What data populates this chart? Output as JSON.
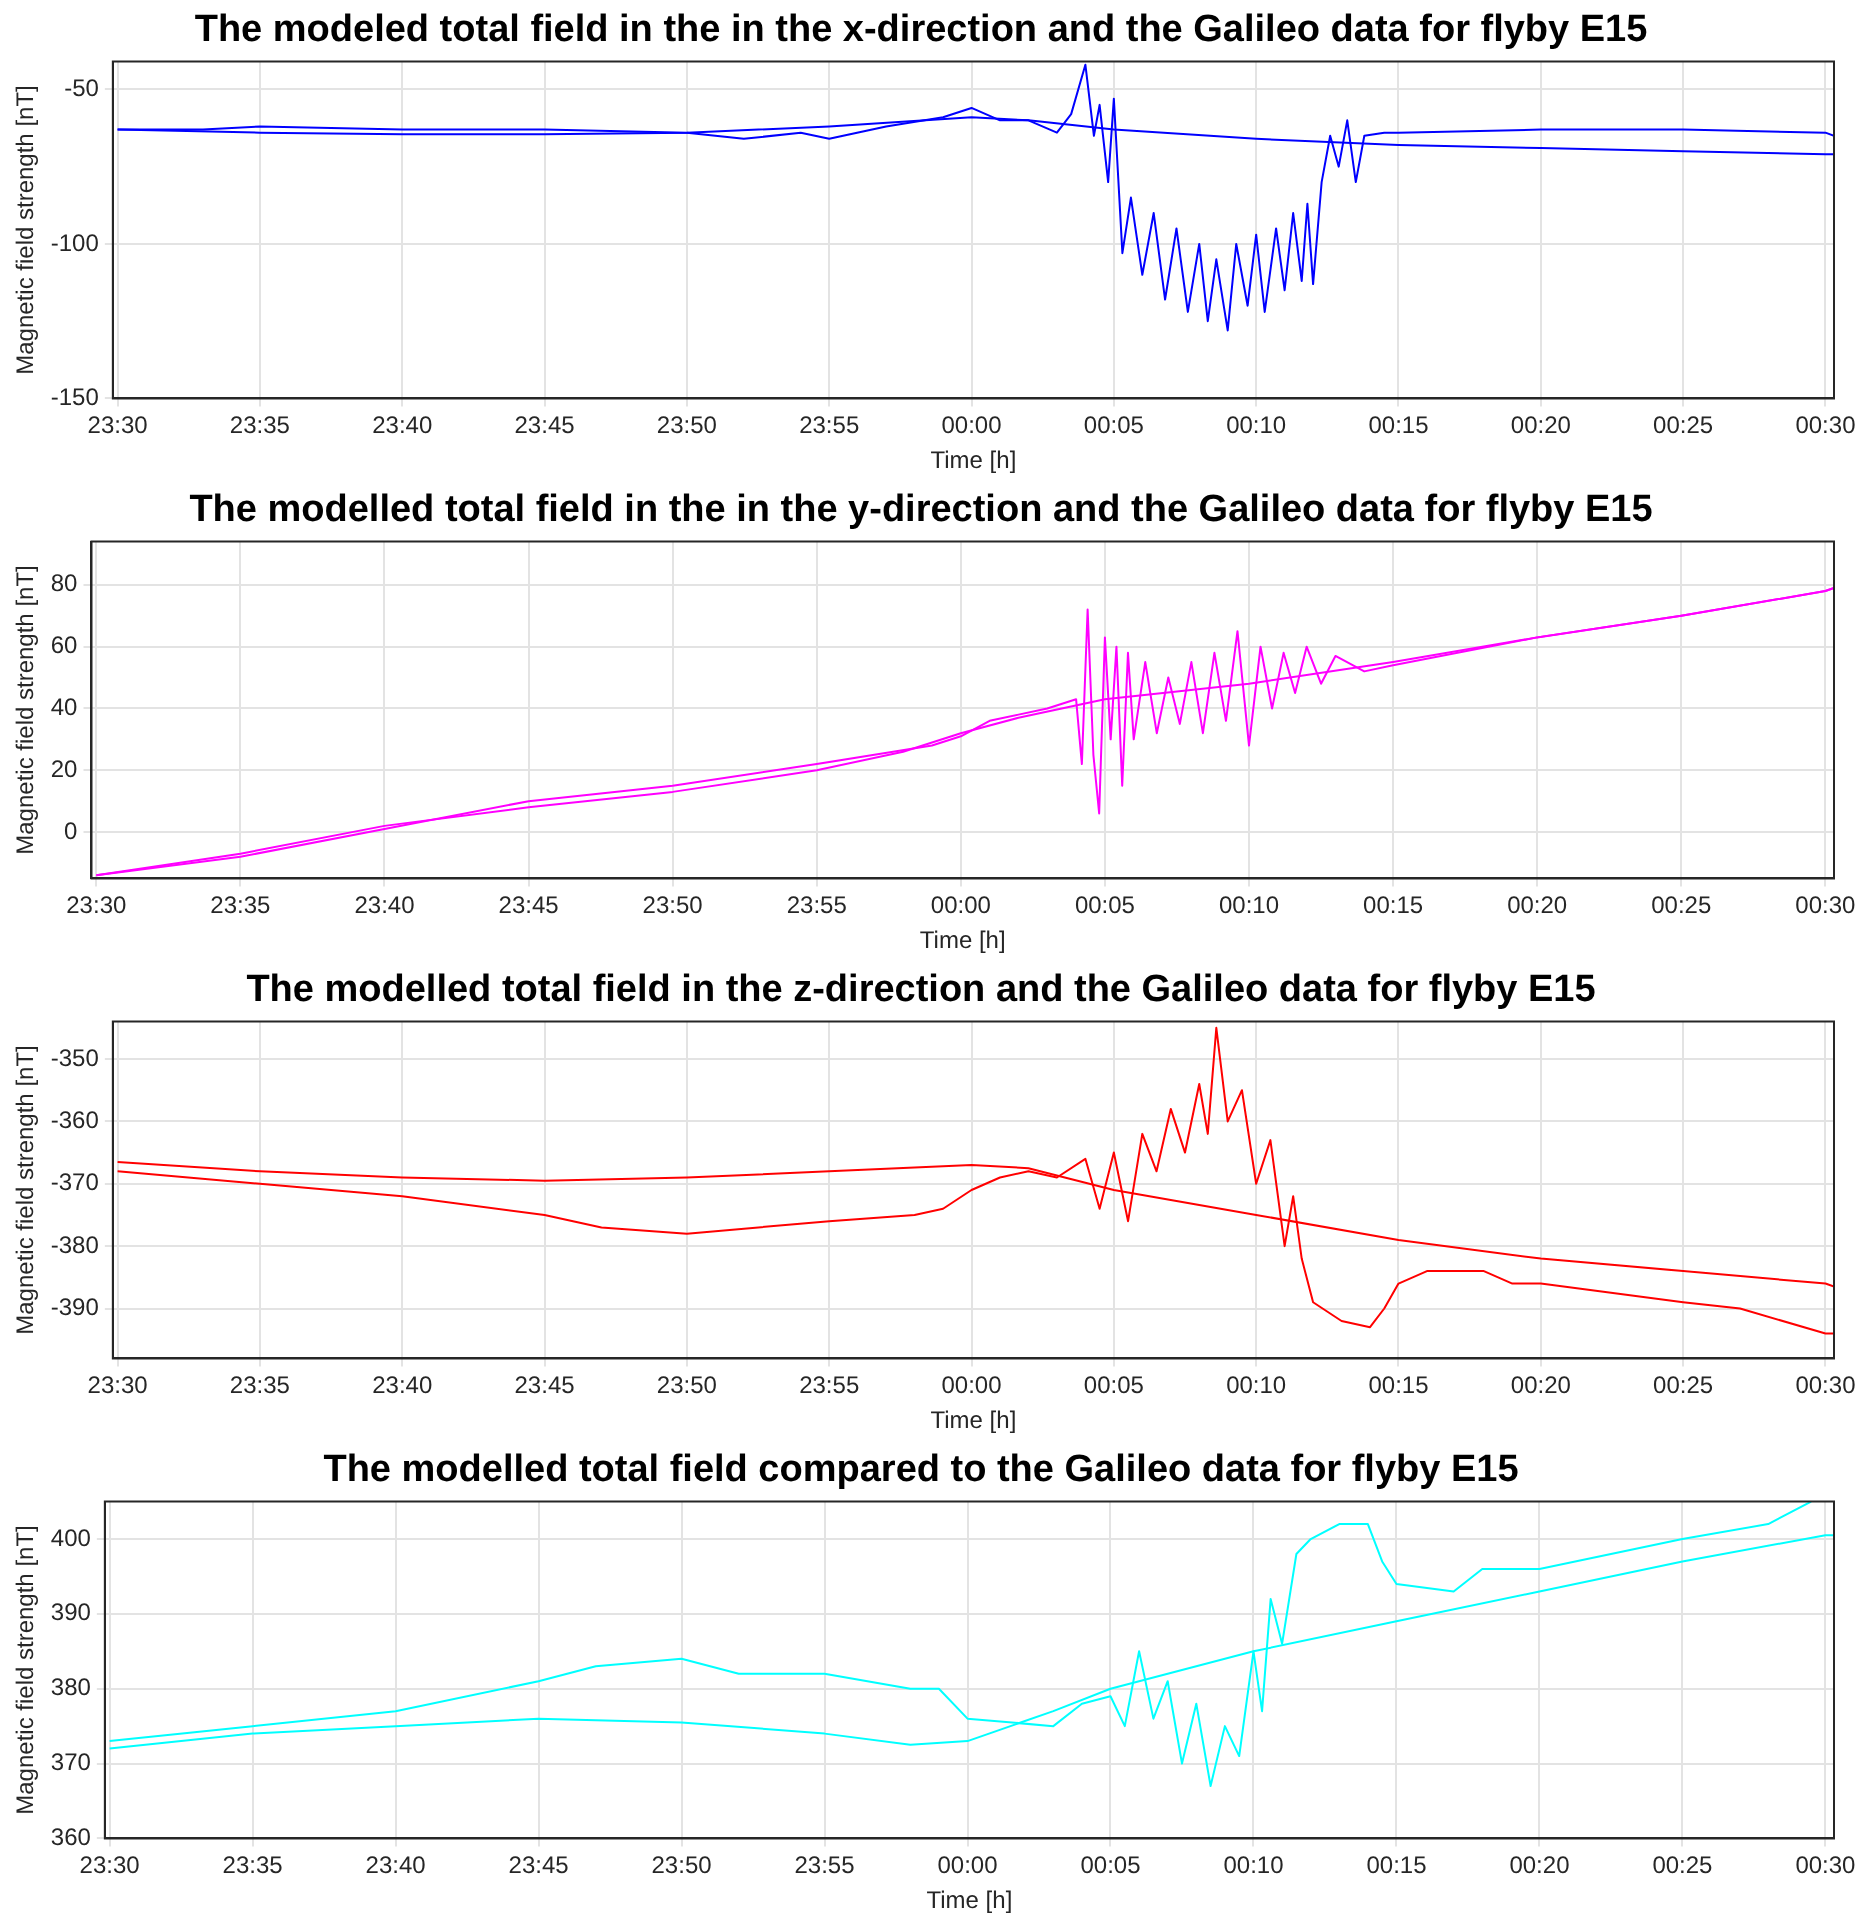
{
  "chart_data": [
    {
      "type": "line",
      "title": "The modeled total field in the in the x-direction and the Galileo data for flyby E15",
      "xlabel": "Time [h]",
      "ylabel": "Magnetic field strength [nT]",
      "xlim": [
        "--01-01T23:29:50",
        "--01-02T00:30:18"
      ],
      "ylim": [
        -150,
        -41
      ],
      "yticks": [
        -150,
        -100,
        -50
      ],
      "xticks": [
        {
          "value": "--01-01T23:30",
          "label": "23:30"
        },
        {
          "value": "--01-01T23:35",
          "label": "23:35"
        },
        {
          "value": "--01-01T23:40",
          "label": "23:40"
        },
        {
          "value": "--01-01T23:45",
          "label": "23:45"
        },
        {
          "value": "--01-01T23:50",
          "label": "23:50"
        },
        {
          "value": "--01-01T23:55",
          "label": "23:55"
        },
        {
          "value": "--01-02T00:00",
          "label": "00:00"
        },
        {
          "value": "--01-02T00:05",
          "label": "00:05"
        },
        {
          "value": "--01-02T00:10",
          "label": "00:10"
        },
        {
          "value": "--01-02T00:15",
          "label": "00:15"
        },
        {
          "value": "--01-02T00:20",
          "label": "00:20"
        },
        {
          "value": "--01-02T00:25",
          "label": "00:25"
        },
        {
          "value": "--01-02T00:30",
          "label": "00:30"
        }
      ],
      "grid": true,
      "series": [
        {
          "color": "#0000ff",
          "x": [
            "--01-01T23:30",
            "--01-01T23:33",
            "--01-01T23:35",
            "--01-01T23:40",
            "--01-01T23:45",
            "--01-01T23:50",
            "--01-01T23:52",
            "--01-01T23:54",
            "--01-01T23:55",
            "--01-01T23:57",
            "--01-01T23:59",
            "--01-02T00:00",
            "--01-02T00:01",
            "--01-02T00:02",
            "--01-02T00:03",
            "--01-02T00:03:30",
            "--01-02T00:04",
            "--01-02T00:04:18",
            "--01-02T00:04:30",
            "--01-02T00:04:48",
            "--01-02T00:05",
            "--01-02T00:05:18",
            "--01-02T00:05:36",
            "--01-02T00:06",
            "--01-02T00:06:24",
            "--01-02T00:06:48",
            "--01-02T00:07:12",
            "--01-02T00:07:36",
            "--01-02T00:08",
            "--01-02T00:08:18",
            "--01-02T00:08:36",
            "--01-02T00:09",
            "--01-02T00:09:18",
            "--01-02T00:09:42",
            "--01-02T00:10",
            "--01-02T00:10:18",
            "--01-02T00:10:42",
            "--01-02T00:11",
            "--01-02T00:11:18",
            "--01-02T00:11:36",
            "--01-02T00:11:48",
            "--01-02T00:12",
            "--01-02T00:12:18",
            "--01-02T00:12:36",
            "--01-02T00:12:54",
            "--01-02T00:13:12",
            "--01-02T00:13:30",
            "--01-02T00:13:48",
            "--01-02T00:14:30",
            "--01-02T00:15",
            "--01-02T00:20",
            "--01-02T00:25",
            "--01-02T00:30",
            "--01-02T00:30:18"
          ],
          "values": [
            -63,
            -63,
            -62,
            -63,
            -63,
            -64,
            -66,
            -64,
            -66,
            -62,
            -59,
            -56,
            -60,
            -60,
            -64,
            -58,
            -42,
            -65,
            -55,
            -80,
            -53,
            -103,
            -85,
            -110,
            -90,
            -118,
            -95,
            -122,
            -100,
            -125,
            -105,
            -128,
            -100,
            -120,
            -97,
            -122,
            -95,
            -115,
            -90,
            -112,
            -87,
            -113,
            -80,
            -65,
            -75,
            -60,
            -80,
            -65,
            -64,
            -64,
            -63,
            -63,
            -64,
            -65
          ]
        },
        {
          "color": "#0000ff",
          "x": [
            "--01-01T23:30",
            "--01-01T23:35",
            "--01-01T23:40",
            "--01-01T23:45",
            "--01-01T23:50",
            "--01-01T23:55",
            "--01-02T00:00",
            "--01-02T00:02",
            "--01-02T00:05",
            "--01-02T00:10",
            "--01-02T00:15",
            "--01-02T00:20",
            "--01-02T00:25",
            "--01-02T00:30",
            "--01-02T00:30:18"
          ],
          "values": [
            -63,
            -64,
            -64.5,
            -64.5,
            -64,
            -62,
            -59,
            -60,
            -63,
            -66,
            -68,
            -69,
            -70,
            -71,
            -71
          ]
        }
      ]
    },
    {
      "type": "line",
      "title": "The modelled total field in the in the y-direction and the Galileo data for flyby E15",
      "xlabel": "Time [h]",
      "ylabel": "Magnetic field strength [nT]",
      "xlim": [
        "--01-01T23:29:50",
        "--01-02T00:30:18"
      ],
      "ylim": [
        -15,
        94
      ],
      "yticks": [
        0,
        20,
        40,
        60,
        80
      ],
      "xticks": [
        {
          "value": "--01-01T23:30",
          "label": "23:30"
        },
        {
          "value": "--01-01T23:35",
          "label": "23:35"
        },
        {
          "value": "--01-01T23:40",
          "label": "23:40"
        },
        {
          "value": "--01-01T23:45",
          "label": "23:45"
        },
        {
          "value": "--01-01T23:50",
          "label": "23:50"
        },
        {
          "value": "--01-01T23:55",
          "label": "23:55"
        },
        {
          "value": "--01-02T00:00",
          "label": "00:00"
        },
        {
          "value": "--01-02T00:05",
          "label": "00:05"
        },
        {
          "value": "--01-02T00:10",
          "label": "00:10"
        },
        {
          "value": "--01-02T00:15",
          "label": "00:15"
        },
        {
          "value": "--01-02T00:20",
          "label": "00:20"
        },
        {
          "value": "--01-02T00:25",
          "label": "00:25"
        },
        {
          "value": "--01-02T00:30",
          "label": "00:30"
        }
      ],
      "grid": true,
      "series": [
        {
          "color": "#ff00ff",
          "x": [
            "--01-01T23:30",
            "--01-01T23:35",
            "--01-01T23:40",
            "--01-01T23:45",
            "--01-01T23:50",
            "--01-01T23:55",
            "--01-01T23:57",
            "--01-01T23:59",
            "--01-02T00:00",
            "--01-02T00:01",
            "--01-02T00:02",
            "--01-02T00:03",
            "--01-02T00:04",
            "--01-02T00:04:12",
            "--01-02T00:04:24",
            "--01-02T00:04:36",
            "--01-02T00:04:48",
            "--01-02T00:05",
            "--01-02T00:05:12",
            "--01-02T00:05:24",
            "--01-02T00:05:36",
            "--01-02T00:05:48",
            "--01-02T00:06",
            "--01-02T00:06:24",
            "--01-02T00:06:48",
            "--01-02T00:07:12",
            "--01-02T00:07:36",
            "--01-02T00:08",
            "--01-02T00:08:24",
            "--01-02T00:08:48",
            "--01-02T00:09:12",
            "--01-02T00:09:36",
            "--01-02T00:10",
            "--01-02T00:10:24",
            "--01-02T00:10:48",
            "--01-02T00:11:12",
            "--01-02T00:11:36",
            "--01-02T00:12",
            "--01-02T00:12:30",
            "--01-02T00:13",
            "--01-02T00:14",
            "--01-02T00:15",
            "--01-02T00:20",
            "--01-02T00:25",
            "--01-02T00:30",
            "--01-02T00:30:18"
          ],
          "values": [
            -14,
            -8,
            1,
            10,
            15,
            22,
            25,
            28,
            31,
            36,
            38,
            40,
            43,
            22,
            72,
            25,
            6,
            63,
            30,
            60,
            15,
            58,
            30,
            55,
            32,
            50,
            35,
            55,
            32,
            58,
            36,
            65,
            28,
            60,
            40,
            58,
            45,
            60,
            48,
            57,
            52,
            54,
            63,
            70,
            78,
            79
          ]
        },
        {
          "color": "#ff00ff",
          "x": [
            "--01-01T23:30",
            "--01-01T23:35",
            "--01-01T23:40",
            "--01-01T23:45",
            "--01-01T23:50",
            "--01-01T23:55",
            "--01-01T23:58",
            "--01-02T00:00",
            "--01-02T00:02",
            "--01-02T00:05",
            "--01-02T00:10",
            "--01-02T00:15",
            "--01-02T00:20",
            "--01-02T00:25",
            "--01-02T00:30",
            "--01-02T00:30:18"
          ],
          "values": [
            -14,
            -7,
            2,
            8,
            13,
            20,
            26,
            32,
            37,
            43,
            48,
            55,
            63,
            70,
            78,
            79
          ]
        }
      ]
    },
    {
      "type": "line",
      "title": "The modelled total field in the z-direction and the Galileo data for flyby E15",
      "xlabel": "Time [h]",
      "ylabel": "Magnetic field strength [nT]",
      "xlim": [
        "--01-01T23:29:50",
        "--01-02T00:30:18"
      ],
      "ylim": [
        -398,
        -344
      ],
      "yticks": [
        -390,
        -380,
        -370,
        -360,
        -350
      ],
      "xticks": [
        {
          "value": "--01-01T23:30",
          "label": "23:30"
        },
        {
          "value": "--01-01T23:35",
          "label": "23:35"
        },
        {
          "value": "--01-01T23:40",
          "label": "23:40"
        },
        {
          "value": "--01-01T23:45",
          "label": "23:45"
        },
        {
          "value": "--01-01T23:50",
          "label": "23:50"
        },
        {
          "value": "--01-01T23:55",
          "label": "23:55"
        },
        {
          "value": "--01-02T00:00",
          "label": "00:00"
        },
        {
          "value": "--01-02T00:05",
          "label": "00:05"
        },
        {
          "value": "--01-02T00:10",
          "label": "00:10"
        },
        {
          "value": "--01-02T00:15",
          "label": "00:15"
        },
        {
          "value": "--01-02T00:20",
          "label": "00:20"
        },
        {
          "value": "--01-02T00:25",
          "label": "00:25"
        },
        {
          "value": "--01-02T00:30",
          "label": "00:30"
        }
      ],
      "grid": true,
      "series": [
        {
          "color": "#ff0000",
          "x": [
            "--01-01T23:30",
            "--01-01T23:35",
            "--01-01T23:40",
            "--01-01T23:45",
            "--01-01T23:47",
            "--01-01T23:50",
            "--01-01T23:55",
            "--01-01T23:58",
            "--01-01T23:59",
            "--01-02T00:00",
            "--01-02T00:01",
            "--01-02T00:02",
            "--01-02T00:03",
            "--01-02T00:04",
            "--01-02T00:04:30",
            "--01-02T00:05",
            "--01-02T00:05:30",
            "--01-02T00:06",
            "--01-02T00:06:30",
            "--01-02T00:07",
            "--01-02T00:07:30",
            "--01-02T00:08",
            "--01-02T00:08:18",
            "--01-02T00:08:36",
            "--01-02T00:09",
            "--01-02T00:09:30",
            "--01-02T00:10",
            "--01-02T00:10:30",
            "--01-02T00:11",
            "--01-02T00:11:18",
            "--01-02T00:11:36",
            "--01-02T00:12",
            "--01-02T00:13",
            "--01-02T00:14",
            "--01-02T00:14:30",
            "--01-02T00:15",
            "--01-02T00:16",
            "--01-02T00:18",
            "--01-02T00:19",
            "--01-02T00:20",
            "--01-02T00:25",
            "--01-02T00:27",
            "--01-02T00:30",
            "--01-02T00:30:18"
          ],
          "values": [
            -368,
            -370,
            -372,
            -375,
            -377,
            -378,
            -376,
            -375,
            -374,
            -371,
            -369,
            -368,
            -369,
            -366,
            -374,
            -365,
            -376,
            -362,
            -368,
            -358,
            -365,
            -354,
            -362,
            -345,
            -360,
            -355,
            -370,
            -363,
            -380,
            -372,
            -382,
            -389,
            -392,
            -393,
            -390,
            -386,
            -384,
            -384,
            -386,
            -386,
            -389,
            -390,
            -394,
            -394
          ]
        },
        {
          "color": "#ff0000",
          "x": [
            "--01-01T23:30",
            "--01-01T23:35",
            "--01-01T23:40",
            "--01-01T23:45",
            "--01-01T23:50",
            "--01-01T23:55",
            "--01-02T00:00",
            "--01-02T00:02",
            "--01-02T00:05",
            "--01-02T00:10",
            "--01-02T00:15",
            "--01-02T00:20",
            "--01-02T00:25",
            "--01-02T00:30",
            "--01-02T00:30:18"
          ],
          "values": [
            -366.5,
            -368,
            -369,
            -369.5,
            -369,
            -368,
            -367,
            -367.5,
            -371,
            -375,
            -379,
            -382,
            -384,
            -386,
            -386.5
          ]
        }
      ]
    },
    {
      "type": "line",
      "title": "The modelled total field compared to the Galileo data for flyby E15",
      "xlabel": "Time [h]",
      "ylabel": "Magnetic field strength [nT]",
      "xlim": [
        "--01-01T23:29:50",
        "--01-02T00:30:18"
      ],
      "ylim": [
        360,
        405
      ],
      "yticks": [
        360,
        370,
        380,
        390,
        400
      ],
      "xticks": [
        {
          "value": "--01-01T23:30",
          "label": "23:30"
        },
        {
          "value": "--01-01T23:35",
          "label": "23:35"
        },
        {
          "value": "--01-01T23:40",
          "label": "23:40"
        },
        {
          "value": "--01-01T23:45",
          "label": "23:45"
        },
        {
          "value": "--01-01T23:50",
          "label": "23:50"
        },
        {
          "value": "--01-01T23:55",
          "label": "23:55"
        },
        {
          "value": "--01-02T00:00",
          "label": "00:00"
        },
        {
          "value": "--01-02T00:05",
          "label": "00:05"
        },
        {
          "value": "--01-02T00:10",
          "label": "00:10"
        },
        {
          "value": "--01-02T00:15",
          "label": "00:15"
        },
        {
          "value": "--01-02T00:20",
          "label": "00:20"
        },
        {
          "value": "--01-02T00:25",
          "label": "00:25"
        },
        {
          "value": "--01-02T00:30",
          "label": "00:30"
        }
      ],
      "grid": true,
      "series": [
        {
          "color": "#00ffff",
          "x": [
            "--01-01T23:30",
            "--01-01T23:35",
            "--01-01T23:40",
            "--01-01T23:45",
            "--01-01T23:47",
            "--01-01T23:50",
            "--01-01T23:52",
            "--01-01T23:55",
            "--01-01T23:58",
            "--01-01T23:59",
            "--01-02T00:00",
            "--01-02T00:03",
            "--01-02T00:04",
            "--01-02T00:05",
            "--01-02T00:05:30",
            "--01-02T00:06",
            "--01-02T00:06:30",
            "--01-02T00:07",
            "--01-02T00:07:30",
            "--01-02T00:08",
            "--01-02T00:08:30",
            "--01-02T00:09",
            "--01-02T00:09:30",
            "--01-02T00:10",
            "--01-02T00:10:18",
            "--01-02T00:10:36",
            "--01-02T00:11",
            "--01-02T00:11:30",
            "--01-02T00:12",
            "--01-02T00:13",
            "--01-02T00:14",
            "--01-02T00:14:30",
            "--01-02T00:15",
            "--01-02T00:17",
            "--01-02T00:18",
            "--01-02T00:20",
            "--01-02T00:25",
            "--01-02T00:28",
            "--01-02T00:29:30"
          ],
          "values": [
            373,
            375,
            377,
            381,
            383,
            384,
            382,
            382,
            380,
            380,
            376,
            375,
            378,
            379,
            375,
            385,
            376,
            381,
            370,
            378,
            367,
            375,
            371,
            385,
            377,
            392,
            386,
            398,
            400,
            402,
            402,
            397,
            394,
            393,
            396,
            396,
            400,
            402,
            405
          ]
        },
        {
          "color": "#00ffff",
          "x": [
            "--01-01T23:30",
            "--01-01T23:35",
            "--01-01T23:40",
            "--01-01T23:45",
            "--01-01T23:50",
            "--01-01T23:55",
            "--01-01T23:58",
            "--01-02T00:00",
            "--01-02T00:03",
            "--01-02T00:05",
            "--01-02T00:10",
            "--01-02T00:15",
            "--01-02T00:20",
            "--01-02T00:25",
            "--01-02T00:30",
            "--01-02T00:30:18"
          ],
          "values": [
            372,
            374,
            375,
            376,
            375.5,
            374,
            372.5,
            373,
            377,
            380,
            385,
            389,
            393,
            397,
            400.5,
            400.5
          ]
        }
      ]
    }
  ]
}
